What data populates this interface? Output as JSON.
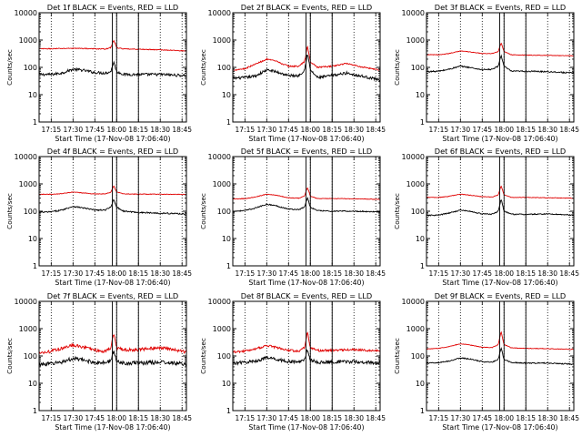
{
  "figure": {
    "background": "#ffffff",
    "y_axis_label": "Counts/sec",
    "x_axis_label": "Start Time (17-Nov-08 17:06:40)",
    "colors": {
      "events": "#000000",
      "lld": "#e00000",
      "axes": "#000000"
    }
  },
  "chart_data": [
    {
      "type": "line",
      "title": "Det 1f BLACK = Events, RED = LLD",
      "xlabel": "Start Time (17-Nov-08 17:06:40)",
      "ylabel": "Counts/sec",
      "yscale": "log",
      "ylim": [
        1,
        10000
      ],
      "yticks": [
        "1",
        "10",
        "100",
        "1000",
        "10000"
      ],
      "xlim": [
        "17:06:40",
        "18:48:00"
      ],
      "xticks": [
        "17:15",
        "17:30",
        "17:45",
        "18:00",
        "18:15",
        "18:30",
        "18:45"
      ],
      "markers": [
        "17:57",
        "18:00",
        "18:15"
      ],
      "series": [
        {
          "name": "Events",
          "color": "#000000",
          "noise": 0.05,
          "x": [
            "17:06:40",
            "17:15",
            "17:22",
            "17:30",
            "17:36",
            "17:45",
            "17:52",
            "17:56",
            "17:58",
            "18:00",
            "18:05",
            "18:15",
            "18:30",
            "18:40",
            "18:48"
          ],
          "y": [
            55,
            55,
            62,
            85,
            80,
            65,
            62,
            70,
            160,
            70,
            55,
            55,
            55,
            52,
            50
          ]
        },
        {
          "name": "LLD",
          "color": "#e00000",
          "noise": 0.015,
          "x": [
            "17:06:40",
            "17:15",
            "17:30",
            "17:45",
            "17:52",
            "17:56",
            "17:58",
            "18:00",
            "18:05",
            "18:15",
            "18:30",
            "18:48"
          ],
          "y": [
            480,
            480,
            500,
            480,
            470,
            530,
            1000,
            530,
            470,
            460,
            440,
            400
          ]
        }
      ]
    },
    {
      "type": "line",
      "title": "Det 2f BLACK = Events, RED = LLD",
      "xlabel": "Start Time (17-Nov-08 17:06:40)",
      "ylabel": "Counts/sec",
      "yscale": "log",
      "ylim": [
        1,
        10000
      ],
      "yticks": [
        "1",
        "10",
        "100",
        "1000",
        "10000"
      ],
      "xlim": [
        "17:06:40",
        "18:48:00"
      ],
      "xticks": [
        "17:15",
        "17:30",
        "17:45",
        "18:00",
        "18:15",
        "18:30",
        "18:45"
      ],
      "markers": [
        "17:57",
        "18:00",
        "18:15"
      ],
      "series": [
        {
          "name": "Events",
          "color": "#000000",
          "noise": 0.05,
          "x": [
            "17:06:40",
            "17:15",
            "17:22",
            "17:30",
            "17:36",
            "17:45",
            "17:52",
            "17:56",
            "17:58",
            "18:00",
            "18:05",
            "18:15",
            "18:25",
            "18:35",
            "18:48"
          ],
          "y": [
            40,
            42,
            48,
            80,
            70,
            50,
            50,
            80,
            330,
            80,
            42,
            50,
            62,
            48,
            35
          ]
        },
        {
          "name": "LLD",
          "color": "#e00000",
          "noise": 0.025,
          "x": [
            "17:06:40",
            "17:15",
            "17:22",
            "17:30",
            "17:36",
            "17:45",
            "17:52",
            "17:56",
            "17:58",
            "18:00",
            "18:05",
            "18:15",
            "18:25",
            "18:35",
            "18:48"
          ],
          "y": [
            80,
            90,
            130,
            200,
            170,
            110,
            110,
            160,
            600,
            160,
            100,
            110,
            140,
            105,
            80
          ]
        }
      ]
    },
    {
      "type": "line",
      "title": "Det 3f BLACK = Events, RED = LLD",
      "xlabel": "Start Time (17-Nov-08 17:06:40)",
      "ylabel": "Counts/sec",
      "yscale": "log",
      "ylim": [
        1,
        10000
      ],
      "yticks": [
        "1",
        "10",
        "100",
        "1000",
        "10000"
      ],
      "xlim": [
        "17:06:40",
        "18:48:00"
      ],
      "xticks": [
        "17:15",
        "17:30",
        "17:45",
        "18:00",
        "18:15",
        "18:30",
        "18:45"
      ],
      "markers": [
        "17:57",
        "18:00",
        "18:15"
      ],
      "series": [
        {
          "name": "Events",
          "color": "#000000",
          "noise": 0.025,
          "x": [
            "17:06:40",
            "17:15",
            "17:22",
            "17:30",
            "17:36",
            "17:45",
            "17:52",
            "17:56",
            "17:58",
            "18:00",
            "18:05",
            "18:15",
            "18:30",
            "18:48"
          ],
          "y": [
            70,
            72,
            85,
            110,
            100,
            82,
            85,
            110,
            280,
            110,
            72,
            72,
            70,
            62
          ]
        },
        {
          "name": "LLD",
          "color": "#e00000",
          "noise": 0.01,
          "x": [
            "17:06:40",
            "17:15",
            "17:22",
            "17:30",
            "17:36",
            "17:45",
            "17:52",
            "17:56",
            "17:58",
            "18:00",
            "18:05",
            "18:15",
            "18:30",
            "18:48"
          ],
          "y": [
            290,
            290,
            320,
            400,
            370,
            320,
            320,
            380,
            800,
            380,
            290,
            280,
            275,
            265
          ]
        }
      ]
    },
    {
      "type": "line",
      "title": "Det 4f BLACK = Events, RED = LLD",
      "xlabel": "Start Time (17-Nov-08 17:06:40)",
      "ylabel": "Counts/sec",
      "yscale": "log",
      "ylim": [
        1,
        10000
      ],
      "yticks": [
        "1",
        "10",
        "100",
        "1000",
        "10000"
      ],
      "xlim": [
        "17:06:40",
        "18:48:00"
      ],
      "xticks": [
        "17:15",
        "17:30",
        "17:45",
        "18:00",
        "18:15",
        "18:30",
        "18:45"
      ],
      "markers": [
        "17:57",
        "18:00",
        "18:15"
      ],
      "series": [
        {
          "name": "Events",
          "color": "#000000",
          "noise": 0.025,
          "x": [
            "17:06:40",
            "17:15",
            "17:22",
            "17:30",
            "17:36",
            "17:45",
            "17:52",
            "17:56",
            "17:58",
            "18:00",
            "18:05",
            "18:15",
            "18:30",
            "18:48"
          ],
          "y": [
            90,
            95,
            110,
            150,
            135,
            110,
            110,
            140,
            280,
            140,
            100,
            90,
            85,
            80
          ]
        },
        {
          "name": "LLD",
          "color": "#e00000",
          "noise": 0.01,
          "x": [
            "17:06:40",
            "17:15",
            "17:22",
            "17:30",
            "17:36",
            "17:45",
            "17:52",
            "17:56",
            "17:58",
            "18:00",
            "18:05",
            "18:15",
            "18:30",
            "18:48"
          ],
          "y": [
            420,
            420,
            440,
            500,
            470,
            430,
            430,
            500,
            850,
            500,
            430,
            420,
            420,
            410
          ]
        }
      ]
    },
    {
      "type": "line",
      "title": "Det 5f BLACK = Events, RED = LLD",
      "xlabel": "Start Time (17-Nov-08 17:06:40)",
      "ylabel": "Counts/sec",
      "yscale": "log",
      "ylim": [
        1,
        10000
      ],
      "yticks": [
        "1",
        "10",
        "100",
        "1000",
        "10000"
      ],
      "xlim": [
        "17:06:40",
        "18:48:00"
      ],
      "xticks": [
        "17:15",
        "17:30",
        "17:45",
        "18:00",
        "18:15",
        "18:30",
        "18:45"
      ],
      "markers": [
        "17:57",
        "18:00",
        "18:15"
      ],
      "series": [
        {
          "name": "Events",
          "color": "#000000",
          "noise": 0.02,
          "x": [
            "17:06:40",
            "17:15",
            "17:22",
            "17:30",
            "17:36",
            "17:45",
            "17:52",
            "17:56",
            "17:58",
            "18:00",
            "18:05",
            "18:15",
            "18:30",
            "18:48"
          ],
          "y": [
            100,
            105,
            130,
            180,
            160,
            120,
            115,
            140,
            320,
            140,
            105,
            100,
            100,
            95
          ]
        },
        {
          "name": "LLD",
          "color": "#e00000",
          "noise": 0.01,
          "x": [
            "17:06:40",
            "17:15",
            "17:22",
            "17:30",
            "17:36",
            "17:45",
            "17:52",
            "17:56",
            "17:58",
            "18:00",
            "18:05",
            "18:15",
            "18:30",
            "18:48"
          ],
          "y": [
            280,
            290,
            330,
            420,
            390,
            310,
            300,
            360,
            750,
            360,
            290,
            290,
            285,
            270
          ]
        }
      ]
    },
    {
      "type": "line",
      "title": "Det 6f BLACK = Events, RED = LLD",
      "xlabel": "Start Time (17-Nov-08 17:06:40)",
      "ylabel": "Counts/sec",
      "yscale": "log",
      "ylim": [
        1,
        10000
      ],
      "yticks": [
        "1",
        "10",
        "100",
        "1000",
        "10000"
      ],
      "xlim": [
        "17:06:40",
        "18:48:00"
      ],
      "xticks": [
        "17:15",
        "17:30",
        "17:45",
        "18:00",
        "18:15",
        "18:30",
        "18:45"
      ],
      "markers": [
        "17:57",
        "18:00",
        "18:15"
      ],
      "series": [
        {
          "name": "Events",
          "color": "#000000",
          "noise": 0.02,
          "x": [
            "17:06:40",
            "17:15",
            "17:22",
            "17:30",
            "17:36",
            "17:45",
            "17:52",
            "17:56",
            "17:58",
            "18:00",
            "18:05",
            "18:15",
            "18:30",
            "18:48"
          ],
          "y": [
            70,
            72,
            85,
            110,
            100,
            80,
            78,
            100,
            280,
            100,
            78,
            76,
            80,
            72
          ]
        },
        {
          "name": "LLD",
          "color": "#e00000",
          "noise": 0.01,
          "x": [
            "17:06:40",
            "17:15",
            "17:22",
            "17:30",
            "17:36",
            "17:45",
            "17:52",
            "17:56",
            "17:58",
            "18:00",
            "18:05",
            "18:15",
            "18:30",
            "18:48"
          ],
          "y": [
            320,
            320,
            350,
            420,
            390,
            340,
            330,
            400,
            850,
            400,
            320,
            320,
            310,
            300
          ]
        }
      ]
    },
    {
      "type": "line",
      "title": "Det 7f BLACK = Events, RED = LLD",
      "xlabel": "Start Time (17-Nov-08 17:06:40)",
      "ylabel": "Counts/sec",
      "yscale": "log",
      "ylim": [
        1,
        10000
      ],
      "yticks": [
        "1",
        "10",
        "100",
        "1000",
        "10000"
      ],
      "xlim": [
        "17:06:40",
        "18:48:00"
      ],
      "xticks": [
        "17:15",
        "17:30",
        "17:45",
        "18:00",
        "18:15",
        "18:30",
        "18:45"
      ],
      "markers": [
        "17:57",
        "18:00",
        "18:15"
      ],
      "series": [
        {
          "name": "Events",
          "color": "#000000",
          "noise": 0.07,
          "x": [
            "17:06:40",
            "17:15",
            "17:22",
            "17:30",
            "17:36",
            "17:45",
            "17:52",
            "17:56",
            "17:58",
            "18:00",
            "18:05",
            "18:15",
            "18:30",
            "18:48"
          ],
          "y": [
            50,
            52,
            60,
            80,
            72,
            58,
            56,
            65,
            160,
            65,
            55,
            55,
            60,
            50
          ]
        },
        {
          "name": "LLD",
          "color": "#e00000",
          "noise": 0.06,
          "x": [
            "17:06:40",
            "17:15",
            "17:22",
            "17:30",
            "17:36",
            "17:45",
            "17:52",
            "17:56",
            "17:58",
            "18:00",
            "18:05",
            "18:15",
            "18:30",
            "18:48"
          ],
          "y": [
            130,
            150,
            190,
            260,
            220,
            160,
            150,
            200,
            700,
            200,
            170,
            170,
            200,
            140
          ]
        }
      ]
    },
    {
      "type": "line",
      "title": "Det 8f BLACK = Events, RED = LLD",
      "xlabel": "Start Time (17-Nov-08 17:06:40)",
      "ylabel": "Counts/sec",
      "yscale": "log",
      "ylim": [
        1,
        10000
      ],
      "yticks": [
        "1",
        "10",
        "100",
        "1000",
        "10000"
      ],
      "xlim": [
        "17:06:40",
        "18:48:00"
      ],
      "xticks": [
        "17:15",
        "17:30",
        "17:45",
        "18:00",
        "18:15",
        "18:30",
        "18:45"
      ],
      "markers": [
        "17:57",
        "18:00",
        "18:15"
      ],
      "series": [
        {
          "name": "Events",
          "color": "#000000",
          "noise": 0.06,
          "x": [
            "17:06:40",
            "17:15",
            "17:22",
            "17:30",
            "17:36",
            "17:45",
            "17:52",
            "17:56",
            "17:58",
            "18:00",
            "18:05",
            "18:15",
            "18:30",
            "18:48"
          ],
          "y": [
            55,
            58,
            65,
            85,
            78,
            62,
            60,
            72,
            180,
            72,
            58,
            60,
            62,
            55
          ]
        },
        {
          "name": "LLD",
          "color": "#e00000",
          "noise": 0.04,
          "x": [
            "17:06:40",
            "17:15",
            "17:22",
            "17:30",
            "17:36",
            "17:45",
            "17:52",
            "17:56",
            "17:58",
            "18:00",
            "18:05",
            "18:15",
            "18:30",
            "18:48"
          ],
          "y": [
            140,
            150,
            180,
            240,
            210,
            160,
            150,
            200,
            750,
            200,
            160,
            160,
            170,
            150
          ]
        }
      ]
    },
    {
      "type": "line",
      "title": "Det 9f BLACK = Events, RED = LLD",
      "xlabel": "Start Time (17-Nov-08 17:06:40)",
      "ylabel": "Counts/sec",
      "yscale": "log",
      "ylim": [
        1,
        10000
      ],
      "yticks": [
        "1",
        "10",
        "100",
        "1000",
        "10000"
      ],
      "xlim": [
        "17:06:40",
        "18:48:00"
      ],
      "xticks": [
        "17:15",
        "17:30",
        "17:45",
        "18:00",
        "18:15",
        "18:30",
        "18:45"
      ],
      "markers": [
        "17:57",
        "18:00",
        "18:15"
      ],
      "series": [
        {
          "name": "Events",
          "color": "#000000",
          "noise": 0.02,
          "x": [
            "17:06:40",
            "17:15",
            "17:22",
            "17:30",
            "17:36",
            "17:45",
            "17:52",
            "17:56",
            "17:58",
            "18:00",
            "18:05",
            "18:15",
            "18:30",
            "18:48"
          ],
          "y": [
            55,
            56,
            65,
            85,
            78,
            62,
            60,
            75,
            200,
            75,
            58,
            55,
            55,
            50
          ]
        },
        {
          "name": "LLD",
          "color": "#e00000",
          "noise": 0.01,
          "x": [
            "17:06:40",
            "17:15",
            "17:22",
            "17:30",
            "17:36",
            "17:45",
            "17:52",
            "17:56",
            "17:58",
            "18:00",
            "18:05",
            "18:15",
            "18:30",
            "18:48"
          ],
          "y": [
            180,
            190,
            220,
            280,
            255,
            210,
            205,
            260,
            800,
            260,
            200,
            190,
            185,
            175
          ]
        }
      ]
    }
  ]
}
